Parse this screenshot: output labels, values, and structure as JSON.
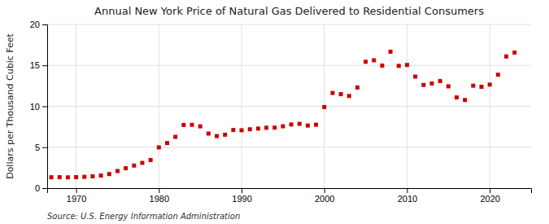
{
  "chart_data": {
    "type": "scatter",
    "title": "Annual New York Price of Natural Gas Delivered to Residential Consumers",
    "ylabel": "Dollars per Thousand Cubic Feet",
    "source": "Source: U.S. Energy Information Administration",
    "x": [
      1967,
      1968,
      1969,
      1970,
      1971,
      1972,
      1973,
      1974,
      1975,
      1976,
      1977,
      1978,
      1979,
      1980,
      1981,
      1982,
      1983,
      1984,
      1985,
      1986,
      1987,
      1988,
      1989,
      1990,
      1991,
      1992,
      1993,
      1994,
      1995,
      1996,
      1997,
      1998,
      1999,
      2000,
      2001,
      2002,
      2003,
      2004,
      2005,
      2006,
      2007,
      2008,
      2009,
      2010,
      2011,
      2012,
      2013,
      2014,
      2015,
      2016,
      2017,
      2018,
      2019,
      2020,
      2021,
      2022,
      2023
    ],
    "values": [
      1.33,
      1.34,
      1.32,
      1.34,
      1.38,
      1.44,
      1.54,
      1.72,
      2.09,
      2.43,
      2.76,
      3.09,
      3.44,
      4.98,
      5.51,
      6.27,
      7.72,
      7.74,
      7.55,
      6.67,
      6.36,
      6.53,
      7.11,
      7.07,
      7.19,
      7.28,
      7.38,
      7.39,
      7.56,
      7.78,
      7.86,
      7.65,
      7.75,
      9.91,
      11.63,
      11.48,
      11.26,
      12.3,
      15.44,
      15.62,
      14.97,
      16.67,
      14.94,
      15.05,
      13.63,
      12.61,
      12.79,
      13.08,
      12.44,
      11.08,
      10.77,
      12.52,
      12.38,
      12.65,
      13.86,
      16.09,
      16.56
    ],
    "color": "#cc0000",
    "marker": "square",
    "grid": true,
    "xlim": [
      1966.5,
      2025
    ],
    "xticks": [
      1970,
      1980,
      1990,
      2000,
      2010,
      2020
    ],
    "ylim": [
      0,
      20
    ],
    "yticks": [
      0,
      5,
      10,
      15,
      20
    ]
  }
}
